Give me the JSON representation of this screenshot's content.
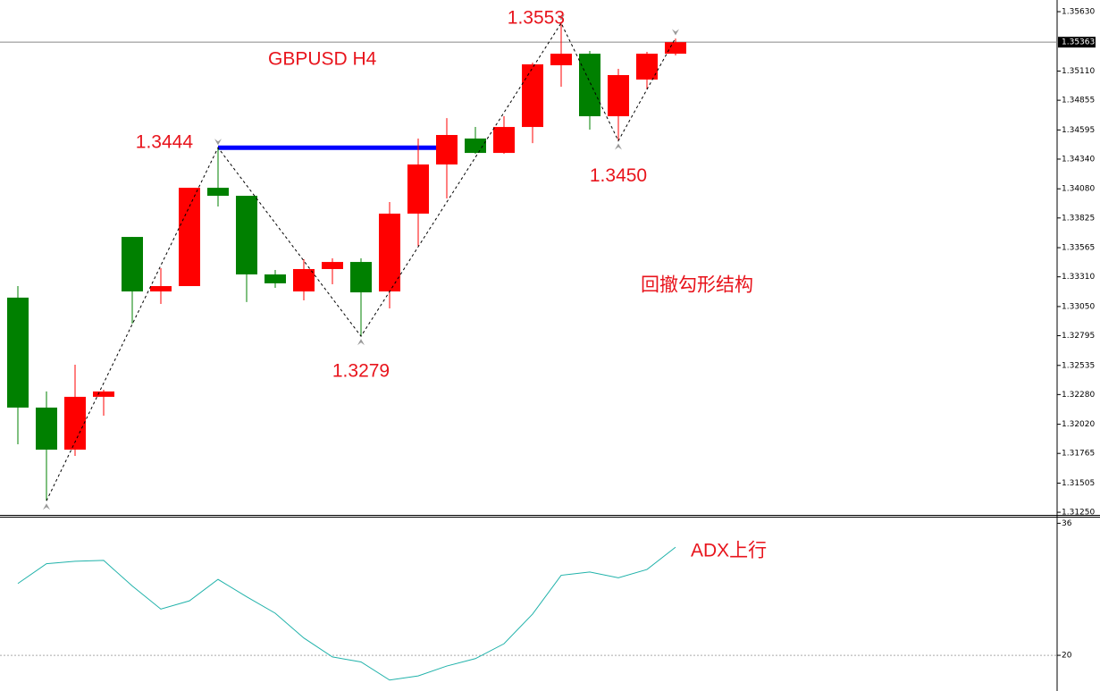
{
  "chart_data": [
    {
      "type": "candlestick",
      "title": "GBPUSD  H4",
      "annotation": "回撤勾形结构",
      "up_color": "#ff0000",
      "down_color": "#008000",
      "open": [
        1.33128,
        1.32166,
        1.31798,
        1.3226,
        1.33659,
        1.33182,
        1.33229,
        1.34089,
        1.34019,
        1.33331,
        1.33182,
        1.33378,
        1.3344,
        1.33182,
        1.33863,
        1.34293,
        1.3452,
        1.34394,
        1.34621,
        1.35161,
        1.35262,
        1.34715,
        1.35036,
        1.35262
      ],
      "high": [
        1.33229,
        1.32307,
        1.32541,
        1.32322,
        1.33659,
        1.33386,
        1.34089,
        1.3444,
        1.34019,
        1.3337,
        1.33464,
        1.33472,
        1.33472,
        1.33964,
        1.3452,
        1.34699,
        1.34621,
        1.34715,
        1.35184,
        1.3553,
        1.35286,
        1.3513,
        1.35278,
        1.35395
      ],
      "low": [
        1.31845,
        1.31352,
        1.31743,
        1.32095,
        1.32901,
        1.33073,
        1.33229,
        1.33925,
        1.33089,
        1.33214,
        1.33104,
        1.33245,
        1.3279,
        1.33034,
        1.33581,
        1.33996,
        1.34387,
        1.34387,
        1.3448,
        1.34973,
        1.34598,
        1.345,
        1.3495,
        1.35247
      ],
      "close": [
        1.32166,
        1.31798,
        1.3226,
        1.32307,
        1.33182,
        1.33229,
        1.34089,
        1.34019,
        1.33331,
        1.33253,
        1.33378,
        1.3344,
        1.33174,
        1.33863,
        1.34293,
        1.34551,
        1.34394,
        1.34621,
        1.35169,
        1.35262,
        1.34715,
        1.35075,
        1.35262,
        1.35363
      ],
      "zigzag": [
        {
          "index": 1,
          "value": 1.3135
        },
        {
          "index": 7,
          "value": 1.3444,
          "label": "1.3444"
        },
        {
          "index": 12,
          "value": 1.3279,
          "label": "1.3279"
        },
        {
          "index": 19,
          "value": 1.3553,
          "label": "1.3553"
        },
        {
          "index": 21,
          "value": 1.345,
          "label": "1.3450"
        },
        {
          "index": 23,
          "value": 1.354
        }
      ],
      "level": {
        "value": 1.3444,
        "from": 7,
        "to": 15,
        "color": "#0000ff"
      },
      "last_price": {
        "value": 1.35363,
        "label": "1.35363"
      },
      "ylim": [
        1.31227,
        1.35732
      ],
      "yticks": [
        {
          "value": 1.3563,
          "label": "1.35630"
        },
        {
          "value": 1.3511,
          "label": "1.35110"
        },
        1.34855,
        1.34595,
        {
          "value": 1.3434,
          "label": "1.34340"
        },
        {
          "value": 1.3408,
          "label": "1.34080"
        },
        1.33825,
        1.33565,
        {
          "value": 1.3331,
          "label": "1.33310"
        },
        {
          "value": 1.3305,
          "label": "1.33050"
        },
        1.32795,
        1.32535,
        {
          "value": 1.3228,
          "label": "1.32280"
        },
        {
          "value": 1.3202,
          "label": "1.32020"
        },
        1.31765,
        1.31505,
        {
          "value": 1.3125,
          "label": "1.31250"
        }
      ]
    },
    {
      "type": "line",
      "annotation": "ADX上行",
      "color": "#20b2aa",
      "values": [
        28.7,
        31.1,
        31.4,
        31.5,
        28.4,
        25.6,
        26.6,
        29.2,
        27.1,
        25.1,
        22.1,
        19.8,
        19.2,
        17.0,
        17.5,
        18.7,
        19.6,
        21.4,
        25.0,
        29.7,
        30.1,
        29.4,
        30.4,
        33.1
      ],
      "ylim": [
        16,
        36.8
      ],
      "yticks": [
        36,
        20
      ],
      "levels": [
        20
      ]
    }
  ]
}
